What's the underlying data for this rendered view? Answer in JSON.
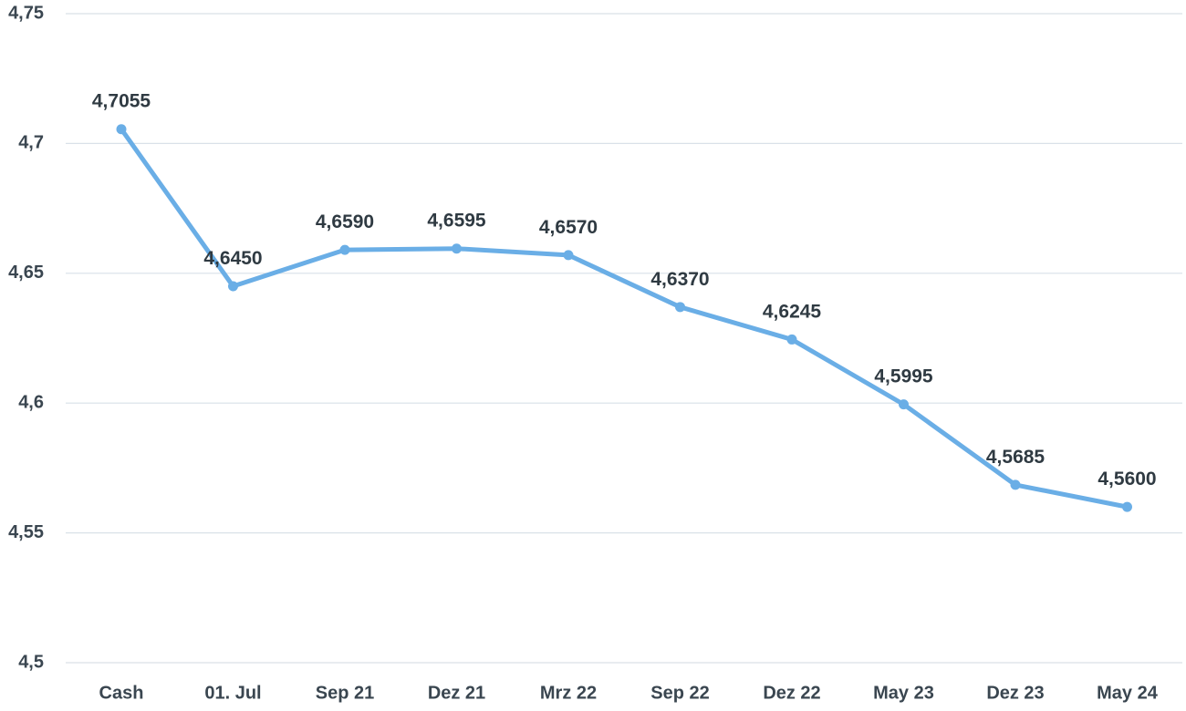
{
  "chart_data": {
    "type": "line",
    "title": "",
    "xlabel": "",
    "ylabel": "",
    "categories": [
      "Cash",
      "01. Jul",
      "Sep 21",
      "Dez 21",
      "Mrz 22",
      "Sep 22",
      "Dez 22",
      "May 23",
      "Dez 23",
      "May 24"
    ],
    "series": [
      {
        "values": [
          4.7055,
          4.645,
          4.659,
          4.6595,
          4.657,
          4.637,
          4.6245,
          4.5995,
          4.5685,
          4.56
        ],
        "labels": [
          "4,7055",
          "4,6450",
          "4,6590",
          "4,6595",
          "4,6570",
          "4,6370",
          "4,6245",
          "4,5995",
          "4,5685",
          "4,5600"
        ]
      }
    ],
    "ylim": [
      4.5,
      4.75
    ],
    "yticks": [
      4.5,
      4.55,
      4.6,
      4.65,
      4.7,
      4.75
    ],
    "ytick_labels": [
      "4,5",
      "4,55",
      "4,6",
      "4,65",
      "4,7",
      "4,75"
    ],
    "grid": true,
    "legend": "none",
    "colors": {
      "line": "#6aaee6",
      "grid": "#d9e1e8",
      "text": "#3a4650"
    }
  }
}
